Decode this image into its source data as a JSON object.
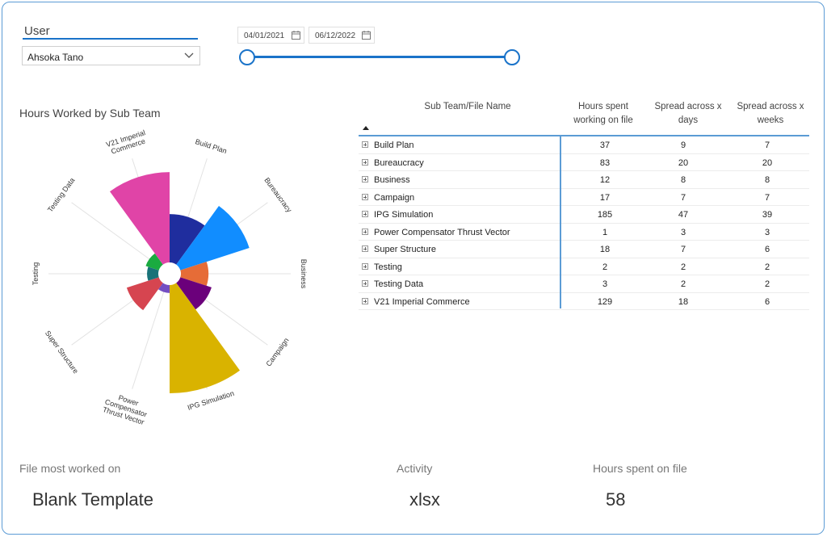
{
  "user_slicer": {
    "label": "User",
    "selected": "Ahsoka Tano"
  },
  "date_slicer": {
    "start": "04/01/2021",
    "end": "06/12/2022"
  },
  "chart": {
    "title": "Hours Worked by Sub Team"
  },
  "chart_data": {
    "type": "pie",
    "subtype": "rose",
    "title": "Hours Worked by Sub Team",
    "categories": [
      "Build Plan",
      "Bureaucracy",
      "Business",
      "Campaign",
      "IPG Simulation",
      "Power Compensator Thrust Vector",
      "Super Structure",
      "Testing",
      "Testing Data",
      "V21 Imperial Commerce"
    ],
    "label_lines": [
      [
        "Build Plan"
      ],
      [
        "Bureaucracy"
      ],
      [
        "Business"
      ],
      [
        "Campaign"
      ],
      [
        "IPG Simulation"
      ],
      [
        "Power",
        "Compensator",
        "Thrust Vector"
      ],
      [
        "Super Structure"
      ],
      [
        "Testing"
      ],
      [
        "Testing Data"
      ],
      [
        "V21 Imperial",
        "Commerce"
      ]
    ],
    "values": [
      37,
      83,
      12,
      17,
      185,
      1,
      18,
      2,
      3,
      129
    ],
    "colors": [
      "#1f2d9e",
      "#118dff",
      "#e66c37",
      "#6b007b",
      "#d9b300",
      "#744ec2",
      "#d64550",
      "#197278",
      "#1aab40",
      "#e044a7"
    ]
  },
  "table": {
    "headers": [
      "Sub Team/File Name",
      "Hours spent working on file",
      "Spread across x days",
      "Spread across x weeks"
    ],
    "rows": [
      {
        "name": "Build Plan",
        "hours": "37",
        "days": "9",
        "weeks": "7"
      },
      {
        "name": "Bureaucracy",
        "hours": "83",
        "days": "20",
        "weeks": "20"
      },
      {
        "name": "Business",
        "hours": "12",
        "days": "8",
        "weeks": "8"
      },
      {
        "name": "Campaign",
        "hours": "17",
        "days": "7",
        "weeks": "7"
      },
      {
        "name": "IPG Simulation",
        "hours": "185",
        "days": "47",
        "weeks": "39"
      },
      {
        "name": "Power Compensator Thrust Vector",
        "hours": "1",
        "days": "3",
        "weeks": "3"
      },
      {
        "name": "Super Structure",
        "hours": "18",
        "days": "7",
        "weeks": "6"
      },
      {
        "name": "Testing",
        "hours": "2",
        "days": "2",
        "weeks": "2"
      },
      {
        "name": "Testing Data",
        "hours": "3",
        "days": "2",
        "weeks": "2"
      },
      {
        "name": "V21 Imperial Commerce",
        "hours": "129",
        "days": "18",
        "weeks": "6"
      }
    ]
  },
  "cards": {
    "file_label": "File most worked on",
    "file_value": "Blank Template",
    "activity_label": "Activity",
    "activity_value": "xlsx",
    "hours_label": "Hours spent on file",
    "hours_value": "58"
  },
  "icons": {
    "dropdown": "chevron-down-icon",
    "calendar": "calendar-icon",
    "expand": "expand-plus-icon",
    "sort": "sort-ascending-icon"
  }
}
